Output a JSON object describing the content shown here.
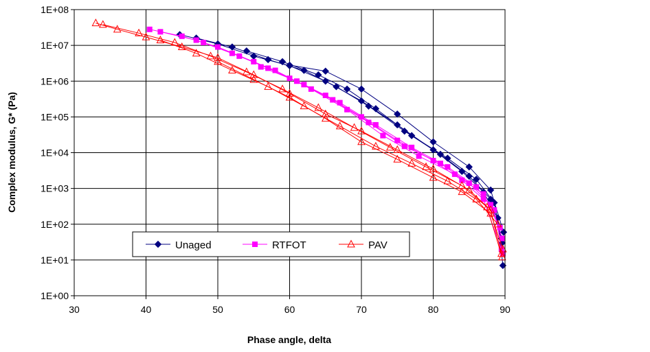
{
  "chart_data": {
    "type": "scatter",
    "title": "",
    "xlabel": "Phase angle, delta",
    "ylabel": "Complex modulus, G* (Pa)",
    "xlim": [
      30,
      90
    ],
    "ylim": [
      1,
      100000000
    ],
    "yscale": "log",
    "x_ticks": [
      30,
      40,
      50,
      60,
      70,
      80,
      90
    ],
    "x_tick_labels": [
      "30",
      "40",
      "50",
      "60",
      "70",
      "80",
      "90"
    ],
    "y_ticks": [
      1,
      10,
      100,
      1000,
      10000,
      100000,
      1000000,
      10000000,
      100000000
    ],
    "y_tick_labels": [
      "1E+00",
      "1E+01",
      "1E+02",
      "1E+03",
      "1E+04",
      "1E+05",
      "1E+06",
      "1E+07",
      "1E+08"
    ],
    "grid": true,
    "legend_position": "bottom-left",
    "series": [
      {
        "name": "Unaged",
        "color": "#000080",
        "marker": "diamond",
        "curves": [
          [
            [
              44.7,
              20000000
            ],
            [
              50,
              11000000
            ],
            [
              55,
              5000000
            ],
            [
              60,
              2700000
            ],
            [
              65,
              1000000
            ],
            [
              70,
              280000
            ],
            [
              75,
              60000
            ],
            [
              80,
              12000
            ],
            [
              84,
              3000
            ],
            [
              87,
              800
            ],
            [
              89,
              150
            ],
            [
              89.7,
              7
            ]
          ],
          [
            [
              47,
              16000000
            ],
            [
              52,
              9000000
            ],
            [
              57,
              4000000
            ],
            [
              62,
              2000000
            ],
            [
              66.5,
              700000
            ],
            [
              71,
              200000
            ],
            [
              76,
              40000
            ],
            [
              81,
              9000
            ],
            [
              85,
              2200
            ],
            [
              88,
              500
            ],
            [
              89.5,
              40
            ]
          ],
          [
            [
              54,
              7000000
            ],
            [
              59,
              3500000
            ],
            [
              64,
              1500000
            ],
            [
              68,
              600000
            ],
            [
              72,
              170000
            ],
            [
              77,
              30000
            ],
            [
              82,
              7000
            ],
            [
              86,
              1800
            ],
            [
              88.5,
              400
            ],
            [
              89.6,
              30
            ]
          ],
          [
            [
              60,
              2800000
            ],
            [
              65,
              1900000
            ],
            [
              70,
              600000
            ],
            [
              75,
              120000
            ],
            [
              80,
              20000
            ],
            [
              85,
              4000
            ],
            [
              88,
              900
            ],
            [
              89.8,
              60
            ]
          ]
        ]
      },
      {
        "name": "RTFOT",
        "color": "#ff00ff",
        "marker": "square",
        "curves": [
          [
            [
              40.5,
              28000000
            ],
            [
              45,
              18000000
            ],
            [
              50,
              9000000
            ],
            [
              55,
              3500000
            ],
            [
              60,
              1200000
            ],
            [
              65,
              400000
            ],
            [
              70,
              100000
            ],
            [
              75,
              22000
            ],
            [
              80,
              6000
            ],
            [
              84,
              1700
            ],
            [
              87,
              500
            ],
            [
              89.5,
              20
            ]
          ],
          [
            [
              42,
              24000000
            ],
            [
              47,
              14000000
            ],
            [
              52,
              6000000
            ],
            [
              57,
              2300000
            ],
            [
              62,
              800000
            ],
            [
              67,
              250000
            ],
            [
              72,
              60000
            ],
            [
              77,
              14000
            ],
            [
              82,
              4000
            ],
            [
              86,
              1100
            ],
            [
              88.5,
              250
            ],
            [
              89.7,
              15
            ]
          ],
          [
            [
              48,
              12000000
            ],
            [
              53,
              5000000
            ],
            [
              58,
              2000000
            ],
            [
              63,
              600000
            ],
            [
              68,
              160000
            ],
            [
              73,
              30000
            ],
            [
              78,
              8000
            ],
            [
              83,
              2500
            ],
            [
              87,
              700
            ],
            [
              89.3,
              80
            ]
          ],
          [
            [
              56,
              2500000
            ],
            [
              61,
              1000000
            ],
            [
              66,
              300000
            ],
            [
              71,
              70000
            ],
            [
              76,
              15000
            ],
            [
              81,
              5000
            ],
            [
              85,
              1400
            ],
            [
              88,
              350
            ],
            [
              89.6,
              40
            ]
          ]
        ]
      },
      {
        "name": "PAV",
        "color": "#ff0000",
        "marker": "triangle",
        "curves": [
          [
            [
              33,
              42000000
            ],
            [
              36,
              28000000
            ],
            [
              40,
              17000000
            ],
            [
              45,
              9000000
            ],
            [
              50,
              4500000
            ],
            [
              55,
              1500000
            ],
            [
              60,
              450000
            ],
            [
              65,
              120000
            ],
            [
              70,
              40000
            ],
            [
              75,
              12000
            ],
            [
              80,
              3500
            ],
            [
              85,
              900
            ],
            [
              88,
              250
            ],
            [
              89.5,
              15
            ]
          ],
          [
            [
              34,
              38000000
            ],
            [
              39,
              22000000
            ],
            [
              44,
              12000000
            ],
            [
              49,
              5000000
            ],
            [
              54,
              1800000
            ],
            [
              59,
              600000
            ],
            [
              64,
              180000
            ],
            [
              69,
              50000
            ],
            [
              74,
              14000
            ],
            [
              79,
              4000
            ],
            [
              84,
              1200
            ],
            [
              87.5,
              300
            ],
            [
              89.6,
              12
            ]
          ],
          [
            [
              42,
              14000000
            ],
            [
              47,
              6000000
            ],
            [
              52,
              2000000
            ],
            [
              57,
              700000
            ],
            [
              62,
              200000
            ],
            [
              67,
              55000
            ],
            [
              72,
              15000
            ],
            [
              77,
              5000
            ],
            [
              82,
              1600
            ],
            [
              86,
              500
            ],
            [
              89,
              100
            ]
          ],
          [
            [
              50,
              3500000
            ],
            [
              55,
              1100000
            ],
            [
              60,
              350000
            ],
            [
              65,
              90000
            ],
            [
              70,
              20000
            ],
            [
              75,
              6500
            ],
            [
              80,
              2000
            ],
            [
              84,
              800
            ],
            [
              88,
              200
            ],
            [
              89.7,
              20
            ]
          ]
        ]
      }
    ]
  }
}
